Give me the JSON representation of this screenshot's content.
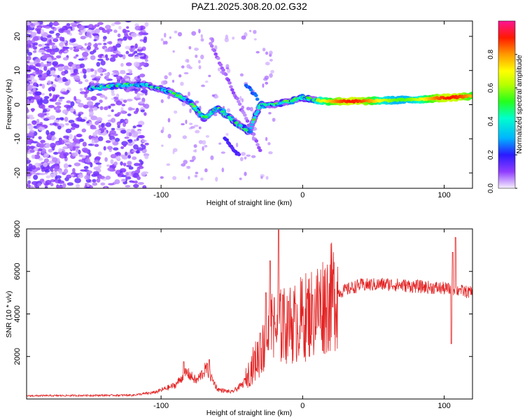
{
  "chart_data": [
    {
      "type": "heatmap",
      "title": "PAZ1.2025.308.20.02.G32",
      "xlabel": "Height of straight line (km)",
      "ylabel": "Frequency (Hz)",
      "xlim": [
        -195,
        120
      ],
      "ylim": [
        -24.5,
        24.5
      ],
      "xticks": [
        -100,
        0,
        100
      ],
      "yticks": [
        -20,
        -10,
        0,
        10,
        20
      ],
      "colorbar": {
        "label": "Normalized spectral amplitude",
        "range": [
          0,
          1
        ],
        "ticks": [
          0.0,
          0.2,
          0.4,
          0.6,
          0.8
        ]
      },
      "ridge": [
        {
          "x": -145,
          "y": 5
        },
        {
          "x": -125,
          "y": 5.8
        },
        {
          "x": -110,
          "y": 5.7
        },
        {
          "x": -95,
          "y": 4
        },
        {
          "x": -80,
          "y": 1
        },
        {
          "x": -70,
          "y": -4
        },
        {
          "x": -60,
          "y": -1
        },
        {
          "x": -48,
          "y": -5
        },
        {
          "x": -38,
          "y": -8
        },
        {
          "x": -30,
          "y": 0
        },
        {
          "x": -20,
          "y": 0
        },
        {
          "x": 0,
          "y": 2
        },
        {
          "x": 15,
          "y": 1
        },
        {
          "x": 40,
          "y": 1
        },
        {
          "x": 80,
          "y": 1.5
        },
        {
          "x": 120,
          "y": 2.5
        }
      ]
    },
    {
      "type": "line",
      "title": "",
      "xlabel": "Height of straight line (km)",
      "ylabel": "SNR (10 * v/v)",
      "xlim": [
        -195,
        120
      ],
      "ylim": [
        0,
        8000
      ],
      "xticks": [
        -100,
        0,
        100
      ],
      "yticks": [
        2000,
        4000,
        6000,
        8000
      ],
      "series": [
        {
          "name": "SNR",
          "color": "#e32222",
          "envelope": [
            {
              "x": -195,
              "y": 150
            },
            {
              "x": -120,
              "y": 180
            },
            {
              "x": -105,
              "y": 300
            },
            {
              "x": -90,
              "y": 650
            },
            {
              "x": -82,
              "y": 1250
            },
            {
              "x": -75,
              "y": 850
            },
            {
              "x": -68,
              "y": 1450
            },
            {
              "x": -60,
              "y": 450
            },
            {
              "x": -50,
              "y": 320
            },
            {
              "x": -42,
              "y": 700
            },
            {
              "x": -35,
              "y": 1600
            },
            {
              "x": -28,
              "y": 2400
            },
            {
              "x": -22,
              "y": 3200
            },
            {
              "x": -15,
              "y": 3400
            },
            {
              "x": -5,
              "y": 3600
            },
            {
              "x": 5,
              "y": 4000
            },
            {
              "x": 15,
              "y": 4500
            },
            {
              "x": 25,
              "y": 5000
            },
            {
              "x": 40,
              "y": 5350
            },
            {
              "x": 60,
              "y": 5400
            },
            {
              "x": 80,
              "y": 5300
            },
            {
              "x": 100,
              "y": 5200
            },
            {
              "x": 120,
              "y": 5000
            }
          ],
          "spikes": [
            {
              "x": -84,
              "y": 1750
            },
            {
              "x": -66,
              "y": 1850
            },
            {
              "x": -30,
              "y": 3100
            },
            {
              "x": -26,
              "y": 5000
            },
            {
              "x": -23,
              "y": 6500
            },
            {
              "x": -21,
              "y": 3900
            },
            {
              "x": -17,
              "y": 7950
            },
            {
              "x": -14,
              "y": 4900
            },
            {
              "x": -10,
              "y": 4600
            },
            {
              "x": -5,
              "y": 4500
            },
            {
              "x": 7,
              "y": 4900
            },
            {
              "x": 105,
              "y": 2600
            },
            {
              "x": 106,
              "y": 6900
            },
            {
              "x": 108,
              "y": 7600
            },
            {
              "x": 111,
              "y": 5200
            }
          ]
        }
      ]
    }
  ]
}
